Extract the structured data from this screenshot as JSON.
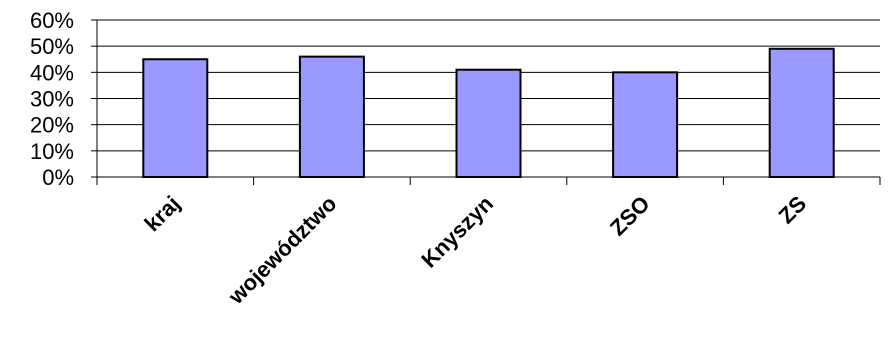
{
  "chart_data": {
    "type": "bar",
    "categories": [
      "kraj",
      "województwo",
      "Knyszyn",
      "ZSO",
      "ZS"
    ],
    "values": [
      0.45,
      0.46,
      0.41,
      0.4,
      0.49
    ],
    "ylim": [
      0,
      0.6
    ],
    "yticks": [
      0,
      0.1,
      0.2,
      0.3,
      0.4,
      0.5,
      0.6
    ],
    "ytick_labels": [
      "0%",
      "10%",
      "20%",
      "30%",
      "40%",
      "50%",
      "60%"
    ],
    "grid": true,
    "legend": "none",
    "colors": {
      "bar": "#9999ff",
      "bar_edge": "#000000",
      "grid": "#000000"
    }
  }
}
